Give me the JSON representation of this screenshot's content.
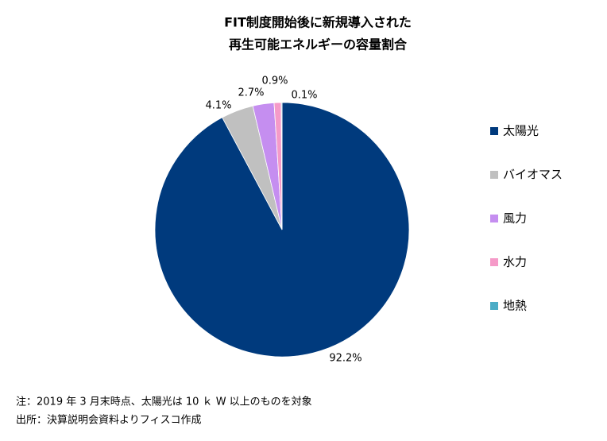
{
  "chart_data": {
    "type": "pie",
    "title": [
      "FIT制度開始後に新規導入された",
      "再生可能エネルギーの容量割合"
    ],
    "categories": [
      "太陽光",
      "バイオマス",
      "風力",
      "水力",
      "地熱"
    ],
    "values": [
      92.2,
      4.1,
      2.7,
      0.9,
      0.1
    ],
    "value_labels": [
      "92.2%",
      "4.1%",
      "2.7%",
      "0.9%",
      "0.1%"
    ],
    "colors": [
      "#003a7d",
      "#c0c0c0",
      "#c58ef0",
      "#f59ac8",
      "#4bacc6"
    ],
    "legend": "right",
    "notes": [
      "注：2019 年 3 月末時点、太陽光は 10 ｋ W 以上のものを対象",
      "出所：決算説明会資料よりフィスコ作成"
    ]
  }
}
